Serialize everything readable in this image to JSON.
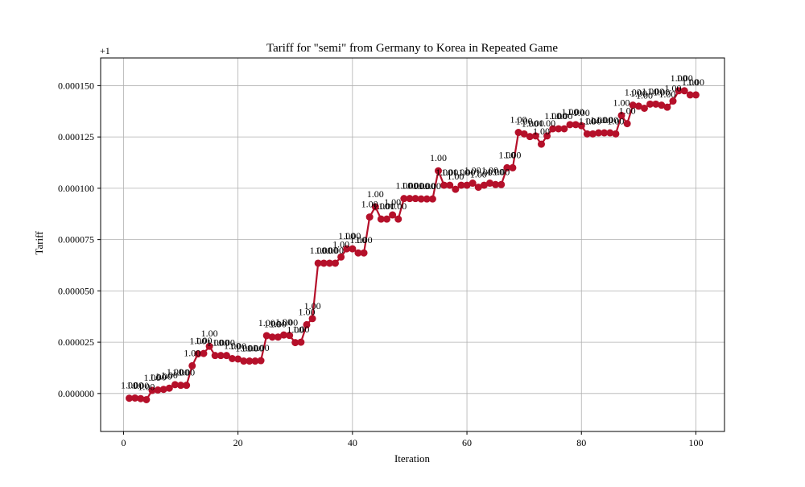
{
  "chart_data": {
    "type": "line",
    "title": "Tariff for \"semi\" from Germany to Korea in Repeated Game",
    "xlabel": "Iteration",
    "ylabel": "Tariff",
    "offset_text": "+1",
    "xlim": [
      -4,
      105
    ],
    "ylim": [
      -1.85e-05,
      0.0001635
    ],
    "xticks": [
      0,
      20,
      40,
      60,
      80,
      100
    ],
    "yticks": [
      0,
      2.5e-05,
      5e-05,
      7.5e-05,
      0.0001,
      0.000125,
      0.00015
    ],
    "ytick_labels": [
      "0.000000",
      "0.000025",
      "0.000050",
      "0.000075",
      "0.000100",
      "0.000125",
      "0.000150"
    ],
    "grid": true,
    "series": [
      {
        "color": "#b5102a",
        "x": [
          1,
          2,
          3,
          4,
          5,
          6,
          7,
          8,
          9,
          10,
          11,
          12,
          13,
          14,
          15,
          16,
          17,
          18,
          19,
          20,
          21,
          22,
          23,
          24,
          25,
          26,
          27,
          28,
          29,
          30,
          31,
          32,
          33,
          34,
          35,
          36,
          37,
          38,
          39,
          40,
          41,
          42,
          43,
          44,
          45,
          46,
          47,
          48,
          49,
          50,
          51,
          52,
          53,
          54,
          55,
          56,
          57,
          58,
          59,
          60,
          61,
          62,
          63,
          64,
          65,
          66,
          67,
          68,
          69,
          70,
          71,
          72,
          73,
          74,
          75,
          76,
          77,
          78,
          79,
          80,
          81,
          82,
          83,
          84,
          85,
          86,
          87,
          88,
          89,
          90,
          91,
          92,
          93,
          94,
          95,
          96,
          97,
          98,
          99,
          100
        ],
        "y": [
          -2.3e-06,
          -2.2e-06,
          -2.5e-06,
          -3e-06,
          1.5e-06,
          1.7e-06,
          2e-06,
          2.6e-06,
          4.3e-06,
          4e-06,
          4e-06,
          1.35e-05,
          1.93e-05,
          1.95e-05,
          2.3e-05,
          1.85e-05,
          1.85e-05,
          1.85e-05,
          1.7e-05,
          1.68e-05,
          1.58e-05,
          1.58e-05,
          1.58e-05,
          1.6e-05,
          2.82e-05,
          2.75e-05,
          2.75e-05,
          2.85e-05,
          2.83e-05,
          2.48e-05,
          2.5e-05,
          3.35e-05,
          3.65e-05,
          6.35e-05,
          6.35e-05,
          6.35e-05,
          6.35e-05,
          6.65e-05,
          7.05e-05,
          7.05e-05,
          6.85e-05,
          6.85e-05,
          8.6e-05,
          9.1e-05,
          8.5e-05,
          8.5e-05,
          8.7e-05,
          8.5e-05,
          9.5e-05,
          9.5e-05,
          9.5e-05,
          9.48e-05,
          9.48e-05,
          9.48e-05,
          0.0001085,
          0.0001015,
          0.0001015,
          9.95e-05,
          0.0001015,
          0.0001015,
          0.0001025,
          0.0001005,
          0.0001015,
          0.0001025,
          0.0001018,
          0.0001018,
          0.00011,
          0.00011,
          0.0001272,
          0.0001265,
          0.0001252,
          0.0001255,
          0.0001215,
          0.0001255,
          0.000129,
          0.000129,
          0.000129,
          0.000131,
          0.000131,
          0.0001305,
          0.0001265,
          0.0001265,
          0.000127,
          0.000127,
          0.000127,
          0.0001265,
          0.0001355,
          0.0001315,
          0.0001405,
          0.00014,
          0.000139,
          0.000141,
          0.000141,
          0.0001405,
          0.0001395,
          0.0001425,
          0.0001475,
          0.0001475,
          0.0001455,
          0.0001455
        ],
        "point_label": "1.00"
      }
    ]
  }
}
